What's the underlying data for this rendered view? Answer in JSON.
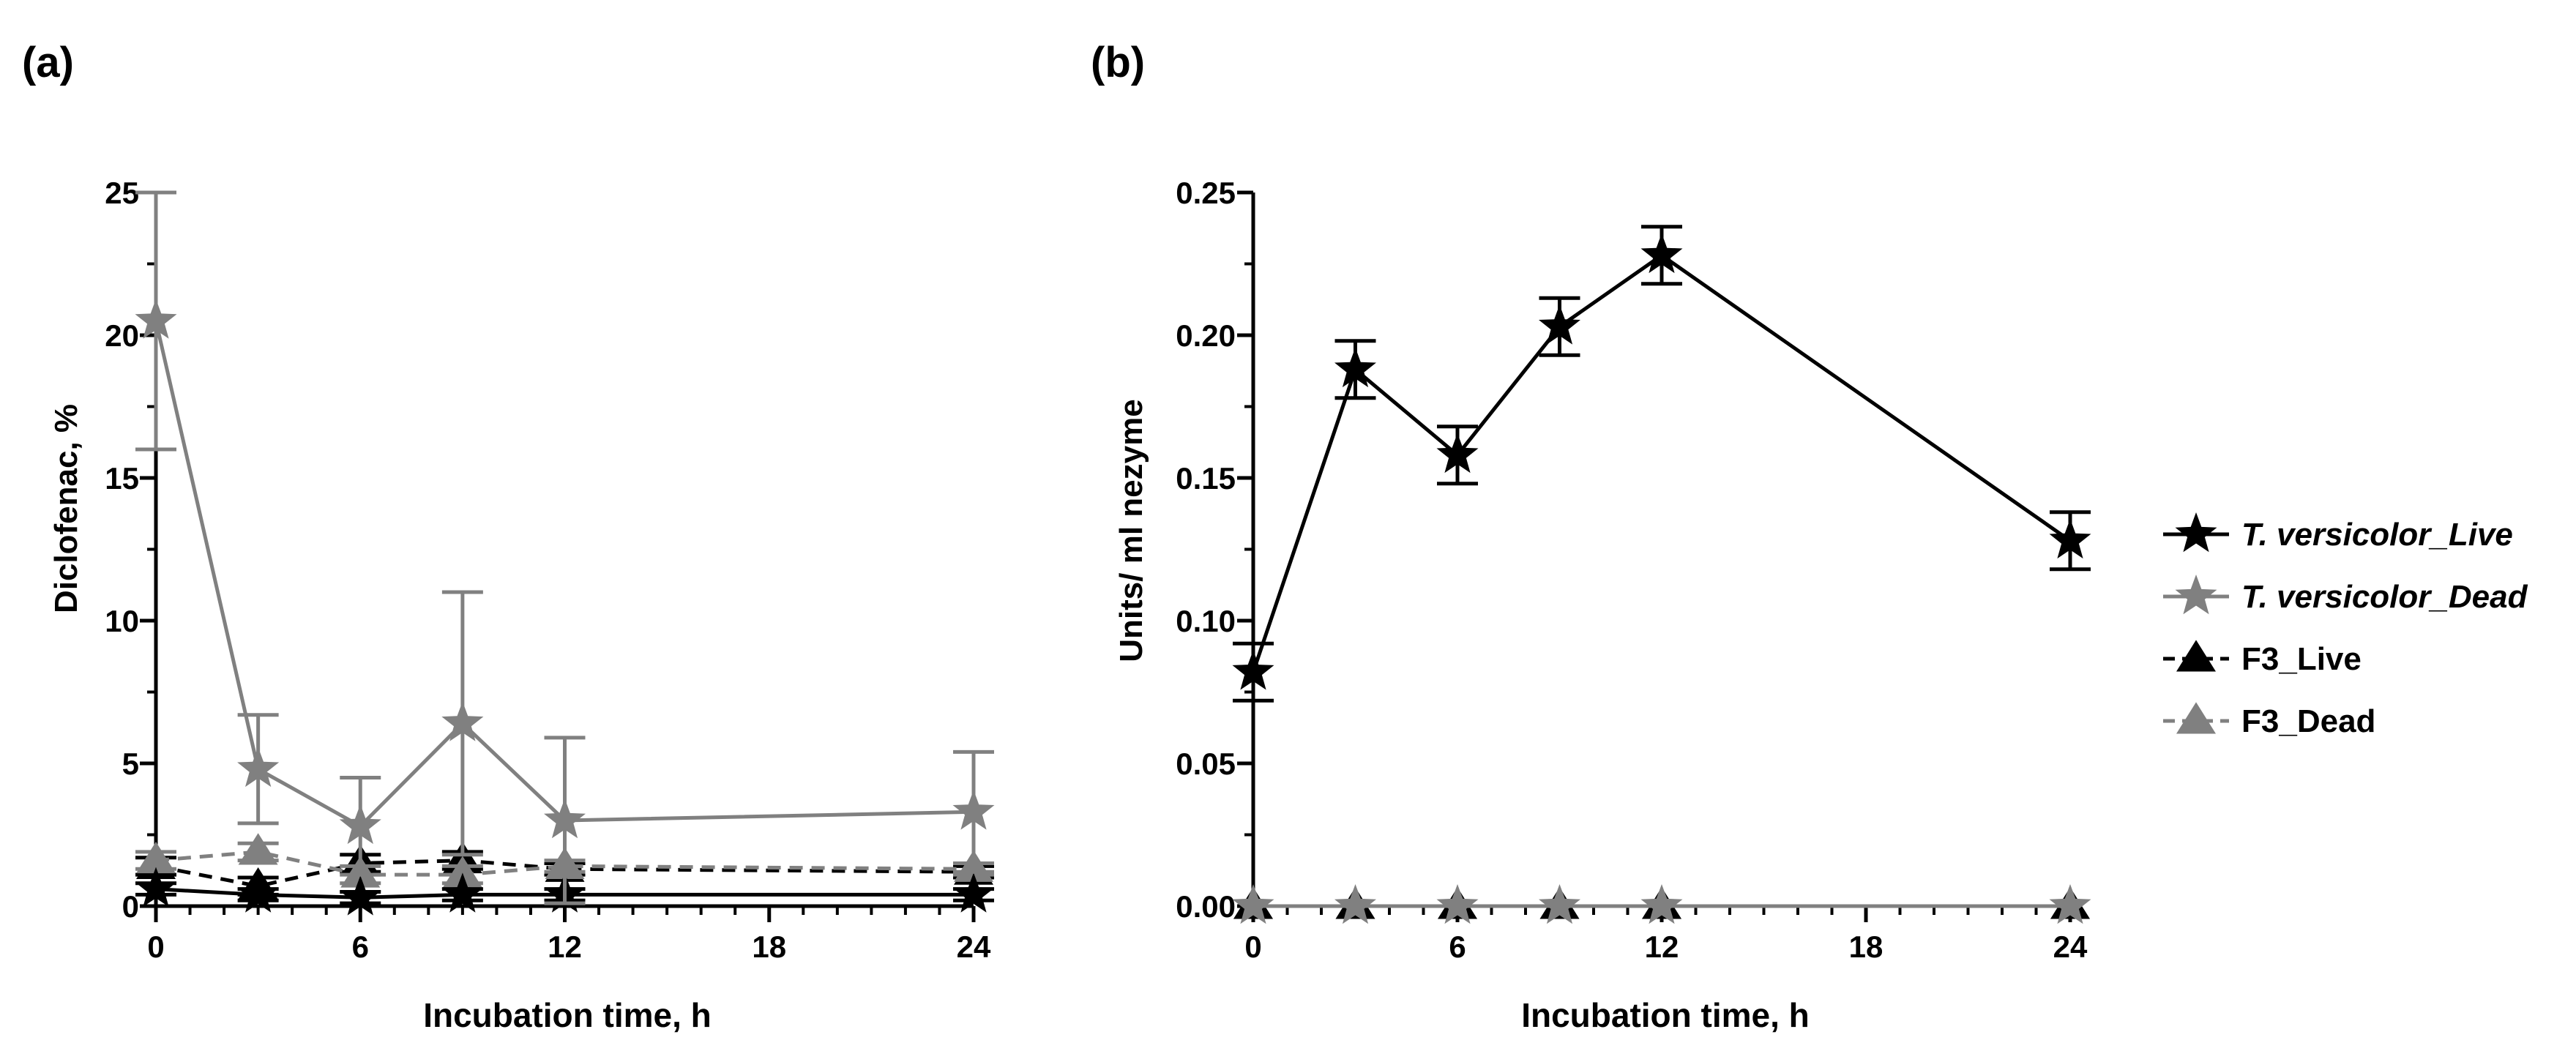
{
  "chart_data": [
    {
      "type": "line",
      "panel_label": "(a)",
      "xlabel": "Incubation time, h",
      "ylabel": "Diclofenac, %",
      "xlim": [
        0,
        24
      ],
      "ylim": [
        0,
        25
      ],
      "xticks": [
        0,
        6,
        12,
        18,
        24
      ],
      "xtick_labels": [
        "0",
        "6",
        "12",
        "18",
        "24"
      ],
      "yticks": [
        0,
        5,
        10,
        15,
        20,
        25
      ],
      "ytick_labels": [
        "0",
        "5",
        "10",
        "15",
        "20",
        "25"
      ],
      "x": [
        0,
        3,
        6,
        9,
        12,
        24
      ],
      "series": [
        {
          "name": "T. versicolor_Live",
          "marker": "star",
          "color": "#000000",
          "dash": "solid",
          "values": [
            0.6,
            0.4,
            0.3,
            0.4,
            0.4,
            0.4
          ],
          "errors": [
            0.2,
            0.2,
            0.2,
            0.2,
            0.2,
            0.2
          ]
        },
        {
          "name": "T. versicolor_Dead",
          "marker": "star",
          "color": "#808080",
          "dash": "solid",
          "values": [
            20.5,
            4.8,
            2.8,
            6.4,
            3.0,
            3.3
          ],
          "errors": [
            4.5,
            1.9,
            1.7,
            4.6,
            2.9,
            2.1
          ]
        },
        {
          "name": "F3_Live",
          "marker": "triangle",
          "color": "#000000",
          "dash": "dashed",
          "values": [
            1.4,
            0.7,
            1.5,
            1.6,
            1.3,
            1.2
          ],
          "errors": [
            0.3,
            0.3,
            0.3,
            0.3,
            0.2,
            0.2
          ]
        },
        {
          "name": "F3_Dead",
          "marker": "triangle",
          "color": "#808080",
          "dash": "dashed",
          "values": [
            1.6,
            1.9,
            1.1,
            1.1,
            1.4,
            1.3
          ],
          "errors": [
            0.3,
            0.3,
            0.3,
            0.3,
            0.2,
            0.2
          ]
        }
      ]
    },
    {
      "type": "line",
      "panel_label": "(b)",
      "xlabel": "Incubation time, h",
      "ylabel": "Units/ ml nezyme",
      "xlim": [
        0,
        24
      ],
      "ylim": [
        0,
        0.25
      ],
      "xticks": [
        0,
        6,
        12,
        18,
        24
      ],
      "xtick_labels": [
        "0",
        "6",
        "12",
        "18",
        "24"
      ],
      "yticks": [
        0,
        0.05,
        0.1,
        0.15,
        0.2,
        0.25
      ],
      "ytick_labels": [
        "0.00",
        "0.05",
        "0.10",
        "0.15",
        "0.20",
        "0.25"
      ],
      "x": [
        0,
        3,
        6,
        9,
        12,
        24
      ],
      "series": [
        {
          "name": "T. versicolor_Live",
          "marker": "star",
          "color": "#000000",
          "dash": "solid",
          "values": [
            0.082,
            0.188,
            0.158,
            0.203,
            0.228,
            0.128
          ],
          "errors": [
            0.01,
            0.01,
            0.01,
            0.01,
            0.01,
            0.01
          ]
        },
        {
          "name": "T. versicolor_Dead",
          "marker": "star",
          "color": "#808080",
          "dash": "solid",
          "values": [
            0,
            0,
            0,
            0,
            0,
            0
          ],
          "errors": [
            0,
            0,
            0,
            0,
            0,
            0
          ]
        },
        {
          "name": "F3_Live",
          "marker": "triangle",
          "color": "#000000",
          "dash": "dashed",
          "values": [
            0,
            0,
            0,
            0,
            0,
            0
          ],
          "errors": [
            0,
            0,
            0,
            0,
            0,
            0
          ]
        },
        {
          "name": "F3_Dead",
          "marker": "triangle",
          "color": "#808080",
          "dash": "dashed",
          "values": [
            0,
            0,
            0,
            0,
            0,
            0
          ],
          "errors": [
            0,
            0,
            0,
            0,
            0,
            0
          ]
        }
      ]
    }
  ],
  "legend": {
    "placement": "right",
    "items": [
      {
        "label": "T. versicolor_Live",
        "italic": true,
        "marker": "star",
        "color": "#000000",
        "dash": "solid"
      },
      {
        "label": "T. versicolor_Dead",
        "italic": true,
        "marker": "star",
        "color": "#808080",
        "dash": "solid"
      },
      {
        "label": "F3_Live",
        "italic": false,
        "marker": "triangle",
        "color": "#000000",
        "dash": "dashed"
      },
      {
        "label": "F3_Dead",
        "italic": false,
        "marker": "triangle",
        "color": "#808080",
        "dash": "dashed"
      }
    ]
  }
}
